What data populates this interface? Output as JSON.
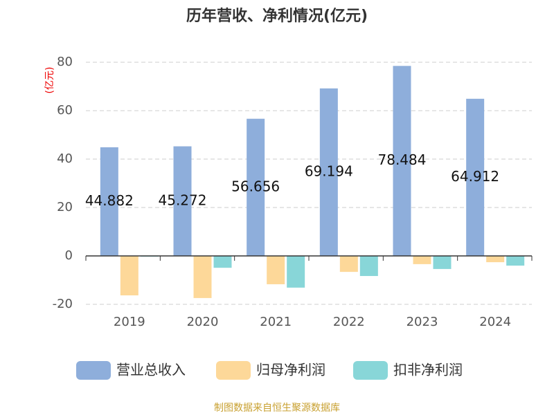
{
  "chart_data": {
    "type": "bar",
    "title": "历年营收、净利情况(亿元)",
    "y_unit": "(亿元)",
    "categories": [
      "2019",
      "2020",
      "2021",
      "2022",
      "2023",
      "2024"
    ],
    "series": [
      {
        "name": "营业总收入",
        "color": "#8eaedb",
        "values": [
          44.882,
          45.272,
          56.656,
          69.194,
          78.484,
          64.912
        ],
        "show_labels": true
      },
      {
        "name": "归母净利润",
        "color": "#fdd899",
        "values": [
          -16.3,
          -17.4,
          -11.7,
          -6.6,
          -3.4,
          -2.6
        ]
      },
      {
        "name": "扣非净利润",
        "color": "#88d6d8",
        "values": [
          -0.3,
          -4.9,
          -13.1,
          -8.3,
          -5.4,
          -4.0
        ]
      }
    ],
    "ylim": [
      -20,
      80
    ],
    "yticks": [
      -20,
      0,
      20,
      40,
      60,
      80
    ],
    "grid": true,
    "source": "制图数据来自恒生聚源数据库"
  }
}
